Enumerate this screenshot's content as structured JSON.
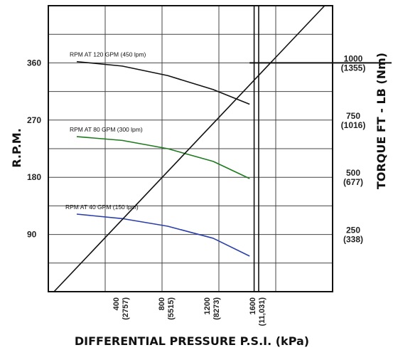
{
  "chart_data": {
    "type": "line",
    "xlabel": "DIFFERENTIAL PRESSURE  P.S.I. (kPa)",
    "ylabel_left": "R.P.M.",
    "ylabel_right": "TORQUE  FT - LB (Nm)",
    "xlim": [
      -250,
      2250
    ],
    "ylim": [
      0,
      450
    ],
    "x_ticks": [
      {
        "value": 400,
        "line1": "400",
        "line2": "(2757)"
      },
      {
        "value": 800,
        "line1": "800",
        "line2": "(5515)"
      },
      {
        "value": 1200,
        "line1": "1200",
        "line2": "(8273)"
      },
      {
        "value": 1600,
        "line1": "1600",
        "line2": "(11,031)"
      }
    ],
    "y_ticks_left": [
      {
        "value": 90,
        "label": "90"
      },
      {
        "value": 180,
        "label": "180"
      },
      {
        "value": 270,
        "label": "270"
      },
      {
        "value": 360,
        "label": "360"
      }
    ],
    "y_ticks_right": [
      {
        "torque": 250,
        "line1": "250",
        "line2": "(338)"
      },
      {
        "torque": 500,
        "line1": "500",
        "line2": "(677)"
      },
      {
        "torque": 750,
        "line1": "750",
        "line2": "(1016)"
      },
      {
        "torque": 1000,
        "line1": "1000",
        "line2": "(1355)"
      }
    ],
    "right_axis": {
      "torque_per_rpm_unit": 2.778
    },
    "series": [
      {
        "name": "RPM AT 120 GPM (450 lpm)",
        "color": "#111111",
        "x": [
          0,
          400,
          800,
          1200,
          1520
        ],
        "y": [
          362,
          355,
          340,
          318,
          295
        ]
      },
      {
        "name": "RPM AT 80 GPM (300 lpm)",
        "color": "#1f7a1f",
        "x": [
          0,
          400,
          800,
          1200,
          1520
        ],
        "y": [
          244,
          238,
          225,
          205,
          178
        ]
      },
      {
        "name": "RPM AT 40 GPM (150 lpm)",
        "color": "#2b3fa8",
        "x": [
          0,
          400,
          800,
          1200,
          1520
        ],
        "y": [
          122,
          115,
          103,
          84,
          56
        ]
      },
      {
        "name": "",
        "color": "#111111",
        "x": [
          -200,
          2180
        ],
        "y": [
          0,
          450
        ]
      }
    ],
    "reference_line": {
      "y": 360,
      "x_from": 1520,
      "x_to": 2250
    },
    "vertical_limit_x": [
      1560,
      1600
    ],
    "grid": true
  }
}
